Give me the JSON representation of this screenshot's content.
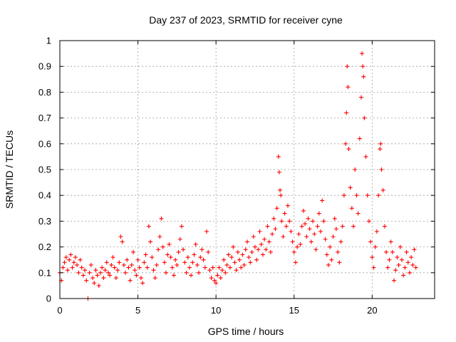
{
  "chart_data": {
    "type": "scatter",
    "title": "Day 237 of 2023, SRMTID for receiver cyne",
    "xlabel": "GPS time / hours",
    "ylabel": "SRMTID / TECUs",
    "xlim": [
      0,
      24
    ],
    "ylim": [
      0,
      1
    ],
    "xticks": [
      0,
      5,
      10,
      15,
      20
    ],
    "xtick_labels": [
      "0",
      "5",
      "10",
      "15",
      "20"
    ],
    "yticks": [
      0,
      0.1,
      0.2,
      0.3,
      0.4,
      0.5,
      0.6,
      0.7,
      0.8,
      0.9,
      1
    ],
    "ytick_labels": [
      "0",
      "0.1",
      "0.2",
      "0.3",
      "0.4",
      "0.5",
      "0.6",
      "0.7",
      "0.8",
      "0.9",
      "1"
    ],
    "grid": true,
    "marker": "+",
    "color": "#ff0000",
    "series": [
      {
        "name": "SRMTID",
        "points": [
          [
            0.0,
            0.1
          ],
          [
            0.1,
            0.07
          ],
          [
            0.2,
            0.12
          ],
          [
            0.3,
            0.14
          ],
          [
            0.4,
            0.16
          ],
          [
            0.5,
            0.11
          ],
          [
            0.6,
            0.15
          ],
          [
            0.7,
            0.17
          ],
          [
            0.8,
            0.12
          ],
          [
            0.9,
            0.14
          ],
          [
            1.0,
            0.16
          ],
          [
            1.1,
            0.13
          ],
          [
            1.2,
            0.1
          ],
          [
            1.3,
            0.15
          ],
          [
            1.4,
            0.12
          ],
          [
            1.5,
            0.09
          ],
          [
            1.6,
            0.11
          ],
          [
            1.7,
            0.07
          ],
          [
            1.8,
            0.0
          ],
          [
            1.9,
            0.1
          ],
          [
            2.0,
            0.13
          ],
          [
            2.1,
            0.08
          ],
          [
            2.2,
            0.06
          ],
          [
            2.3,
            0.11
          ],
          [
            2.4,
            0.09
          ],
          [
            2.5,
            0.05
          ],
          [
            2.6,
            0.1
          ],
          [
            2.7,
            0.12
          ],
          [
            2.8,
            0.08
          ],
          [
            2.9,
            0.11
          ],
          [
            3.0,
            0.14
          ],
          [
            3.1,
            0.1
          ],
          [
            3.2,
            0.09
          ],
          [
            3.3,
            0.13
          ],
          [
            3.4,
            0.16
          ],
          [
            3.5,
            0.12
          ],
          [
            3.6,
            0.08
          ],
          [
            3.7,
            0.11
          ],
          [
            3.8,
            0.14
          ],
          [
            3.9,
            0.24
          ],
          [
            4.0,
            0.22
          ],
          [
            4.1,
            0.13
          ],
          [
            4.2,
            0.1
          ],
          [
            4.3,
            0.15
          ],
          [
            4.4,
            0.12
          ],
          [
            4.5,
            0.07
          ],
          [
            4.6,
            0.13
          ],
          [
            4.7,
            0.18
          ],
          [
            4.8,
            0.11
          ],
          [
            4.9,
            0.09
          ],
          [
            5.0,
            0.15
          ],
          [
            5.1,
            0.12
          ],
          [
            5.2,
            0.08
          ],
          [
            5.3,
            0.06
          ],
          [
            5.4,
            0.14
          ],
          [
            5.5,
            0.17
          ],
          [
            5.6,
            0.12
          ],
          [
            5.7,
            0.28
          ],
          [
            5.8,
            0.22
          ],
          [
            5.9,
            0.16
          ],
          [
            6.0,
            0.11
          ],
          [
            6.1,
            0.08
          ],
          [
            6.2,
            0.13
          ],
          [
            6.3,
            0.19
          ],
          [
            6.4,
            0.24
          ],
          [
            6.5,
            0.31
          ],
          [
            6.6,
            0.2
          ],
          [
            6.7,
            0.14
          ],
          [
            6.8,
            0.1
          ],
          [
            6.9,
            0.17
          ],
          [
            7.0,
            0.21
          ],
          [
            7.1,
            0.16
          ],
          [
            7.2,
            0.12
          ],
          [
            7.3,
            0.09
          ],
          [
            7.4,
            0.15
          ],
          [
            7.5,
            0.13
          ],
          [
            7.6,
            0.18
          ],
          [
            7.7,
            0.23
          ],
          [
            7.8,
            0.28
          ],
          [
            7.9,
            0.19
          ],
          [
            8.0,
            0.14
          ],
          [
            8.1,
            0.1
          ],
          [
            8.2,
            0.16
          ],
          [
            8.3,
            0.12
          ],
          [
            8.4,
            0.09
          ],
          [
            8.5,
            0.14
          ],
          [
            8.6,
            0.17
          ],
          [
            8.7,
            0.21
          ],
          [
            8.8,
            0.13
          ],
          [
            8.9,
            0.1
          ],
          [
            9.0,
            0.16
          ],
          [
            9.1,
            0.19
          ],
          [
            9.2,
            0.15
          ],
          [
            9.3,
            0.12
          ],
          [
            9.4,
            0.26
          ],
          [
            9.5,
            0.18
          ],
          [
            9.6,
            0.11
          ],
          [
            9.7,
            0.08
          ],
          [
            9.8,
            0.12
          ],
          [
            9.9,
            0.07
          ],
          [
            10.0,
            0.06
          ],
          [
            10.1,
            0.09
          ],
          [
            10.2,
            0.12
          ],
          [
            10.3,
            0.08
          ],
          [
            10.4,
            0.11
          ],
          [
            10.5,
            0.15
          ],
          [
            10.6,
            0.1
          ],
          [
            10.7,
            0.13
          ],
          [
            10.8,
            0.17
          ],
          [
            10.9,
            0.12
          ],
          [
            11.0,
            0.16
          ],
          [
            11.1,
            0.2
          ],
          [
            11.2,
            0.14
          ],
          [
            11.3,
            0.11
          ],
          [
            11.4,
            0.18
          ],
          [
            11.5,
            0.15
          ],
          [
            11.6,
            0.12
          ],
          [
            11.7,
            0.17
          ],
          [
            11.8,
            0.13
          ],
          [
            11.9,
            0.19
          ],
          [
            12.0,
            0.22
          ],
          [
            12.1,
            0.16
          ],
          [
            12.2,
            0.14
          ],
          [
            12.3,
            0.18
          ],
          [
            12.4,
            0.24
          ],
          [
            12.5,
            0.2
          ],
          [
            12.6,
            0.15
          ],
          [
            12.7,
            0.19
          ],
          [
            12.8,
            0.26
          ],
          [
            12.9,
            0.21
          ],
          [
            13.0,
            0.17
          ],
          [
            13.1,
            0.23
          ],
          [
            13.2,
            0.19
          ],
          [
            13.3,
            0.28
          ],
          [
            13.4,
            0.22
          ],
          [
            13.5,
            0.18
          ],
          [
            13.6,
            0.25
          ],
          [
            13.7,
            0.31
          ],
          [
            13.8,
            0.27
          ],
          [
            13.9,
            0.35
          ],
          [
            14.0,
            0.55
          ],
          [
            14.05,
            0.49
          ],
          [
            14.1,
            0.42
          ],
          [
            14.15,
            0.4
          ],
          [
            14.2,
            0.3
          ],
          [
            14.3,
            0.24
          ],
          [
            14.4,
            0.33
          ],
          [
            14.5,
            0.28
          ],
          [
            14.6,
            0.36
          ],
          [
            14.7,
            0.3
          ],
          [
            14.8,
            0.26
          ],
          [
            14.9,
            0.22
          ],
          [
            15.0,
            0.18
          ],
          [
            15.1,
            0.14
          ],
          [
            15.2,
            0.2
          ],
          [
            15.3,
            0.25
          ],
          [
            15.4,
            0.21
          ],
          [
            15.5,
            0.28
          ],
          [
            15.6,
            0.34
          ],
          [
            15.7,
            0.29
          ],
          [
            15.8,
            0.24
          ],
          [
            15.9,
            0.31
          ],
          [
            16.0,
            0.27
          ],
          [
            16.1,
            0.22
          ],
          [
            16.2,
            0.3
          ],
          [
            16.3,
            0.25
          ],
          [
            16.4,
            0.19
          ],
          [
            16.5,
            0.28
          ],
          [
            16.6,
            0.33
          ],
          [
            16.7,
            0.26
          ],
          [
            16.8,
            0.38
          ],
          [
            16.9,
            0.3
          ],
          [
            17.0,
            0.23
          ],
          [
            17.1,
            0.17
          ],
          [
            17.2,
            0.13
          ],
          [
            17.3,
            0.2
          ],
          [
            17.4,
            0.15
          ],
          [
            17.5,
            0.24
          ],
          [
            17.6,
            0.31
          ],
          [
            17.7,
            0.27
          ],
          [
            17.8,
            0.18
          ],
          [
            17.9,
            0.14
          ],
          [
            18.0,
            0.22
          ],
          [
            18.1,
            0.28
          ],
          [
            18.2,
            0.4
          ],
          [
            18.3,
            0.6
          ],
          [
            18.35,
            0.72
          ],
          [
            18.4,
            0.9
          ],
          [
            18.45,
            0.82
          ],
          [
            18.5,
            0.58
          ],
          [
            18.6,
            0.43
          ],
          [
            18.7,
            0.35
          ],
          [
            18.8,
            0.28
          ],
          [
            18.9,
            0.5
          ],
          [
            19.0,
            0.4
          ],
          [
            19.1,
            0.33
          ],
          [
            19.2,
            0.62
          ],
          [
            19.3,
            0.78
          ],
          [
            19.35,
            0.95
          ],
          [
            19.4,
            0.9
          ],
          [
            19.45,
            0.86
          ],
          [
            19.5,
            0.7
          ],
          [
            19.6,
            0.55
          ],
          [
            19.7,
            0.4
          ],
          [
            19.8,
            0.3
          ],
          [
            19.9,
            0.22
          ],
          [
            20.0,
            0.16
          ],
          [
            20.1,
            0.12
          ],
          [
            20.2,
            0.2
          ],
          [
            20.3,
            0.26
          ],
          [
            20.4,
            0.4
          ],
          [
            20.5,
            0.58
          ],
          [
            20.55,
            0.6
          ],
          [
            20.6,
            0.5
          ],
          [
            20.7,
            0.42
          ],
          [
            20.8,
            0.28
          ],
          [
            20.9,
            0.18
          ],
          [
            21.0,
            0.12
          ],
          [
            21.1,
            0.15
          ],
          [
            21.2,
            0.22
          ],
          [
            21.3,
            0.18
          ],
          [
            21.4,
            0.07
          ],
          [
            21.5,
            0.11
          ],
          [
            21.6,
            0.16
          ],
          [
            21.7,
            0.13
          ],
          [
            21.8,
            0.2
          ],
          [
            21.9,
            0.15
          ],
          [
            22.0,
            0.09
          ],
          [
            22.1,
            0.12
          ],
          [
            22.2,
            0.18
          ],
          [
            22.3,
            0.14
          ],
          [
            22.4,
            0.1
          ],
          [
            22.5,
            0.16
          ],
          [
            22.6,
            0.13
          ],
          [
            22.7,
            0.19
          ],
          [
            22.8,
            0.12
          ]
        ]
      }
    ]
  }
}
